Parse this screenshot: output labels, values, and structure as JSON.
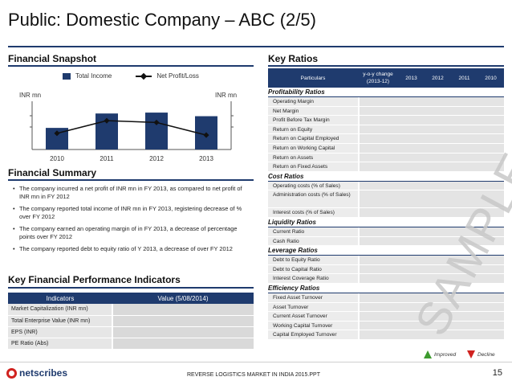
{
  "title": "Public: Domestic Company – ABC (2/5)",
  "financial_snapshot": {
    "heading": "Financial Snapshot",
    "legend_total_income": "Total Income",
    "legend_net_profit": "Net Profit/Loss",
    "left_unit": "INR mn",
    "right_unit": "INR mn"
  },
  "chart_data": {
    "type": "bar",
    "categories": [
      "2010",
      "2011",
      "2012",
      "2013"
    ],
    "series": [
      {
        "name": "Total Income",
        "type": "bar",
        "values": [
          2.4,
          4.0,
          4.1,
          3.7
        ],
        "color": "#1f3b6e"
      },
      {
        "name": "Net Profit/Loss",
        "type": "line",
        "values": [
          1.8,
          3.2,
          3.0,
          1.6
        ],
        "color": "#111111"
      }
    ],
    "ylabel": "INR mn",
    "y2label": "INR mn",
    "ylim": [
      0,
      5
    ]
  },
  "financial_summary": {
    "heading": "Financial Summary",
    "bullets": [
      "The company incurred a net  profit of INR mn in FY 2013, as compared to net profit of INR  mn in FY 2012",
      "The company reported total income of INR mn in FY 2013, registering decrease of % over FY 2012",
      "The company earned an operating margin of  in FY 2013, a decrease of percentage points over FY 2012",
      "The company reported debt to equity ratio of  Y 2013, a decrease of over FY 2012"
    ]
  },
  "kpi": {
    "heading": "Key Financial Performance Indicators",
    "col_indicators": "Indicators",
    "col_value": "Value (5/08/2014)",
    "rows": [
      {
        "label": "Market Capitalization (INR mn)",
        "value": ""
      },
      {
        "label": "Total Enterprise Value (INR mn)",
        "value": ""
      },
      {
        "label": "EPS (INR)",
        "value": ""
      },
      {
        "label": "PE Ratio (Abs)",
        "value": ""
      }
    ]
  },
  "key_ratios": {
    "heading": "Key Ratios",
    "col_particulars": "Particulars",
    "col_yoy": "y-o-y change (2013-12)",
    "years": [
      "2013",
      "2012",
      "2011",
      "2010"
    ],
    "groups": [
      {
        "name": "Profitability Ratios",
        "rows": [
          "Operating Margin",
          "Net Margin",
          "Profit Before Tax Margin",
          "Return on Equity",
          "Return on Capital Employed",
          "Return on Working Capital",
          "Return on Assets",
          "Return on Fixed Assets"
        ]
      },
      {
        "name": "Cost Ratios",
        "rows": [
          "Operating costs (% of Sales)",
          "Administration costs (% of Sales)",
          "Interest costs (% of Sales)"
        ]
      },
      {
        "name": "Liquidity Ratios",
        "rows": [
          "Current Ratio",
          "Cash Ratio"
        ]
      },
      {
        "name": "Leverage Ratios",
        "rows": [
          "Debt to Equity Ratio",
          "Debt to Capital Ratio",
          "Interest Coverage Ratio"
        ]
      },
      {
        "name": "Efficiency Ratios",
        "rows": [
          "Fixed Asset Turnover",
          "Asset Turnover",
          "Current Asset Turnover",
          "Working Capital Turnover",
          "Capital Employed Turnover"
        ]
      }
    ],
    "legend_improved": "Improved",
    "legend_decline": "Decline"
  },
  "watermark": "SAMPLE",
  "footer": {
    "logo": "netscribes",
    "text": "REVERSE LOGISTICS MARKET IN INDIA 2015.PPT",
    "page": "15"
  },
  "colors": {
    "accent": "#1f3b6e",
    "improved": "#3c9a2e",
    "decline": "#d0221f"
  }
}
